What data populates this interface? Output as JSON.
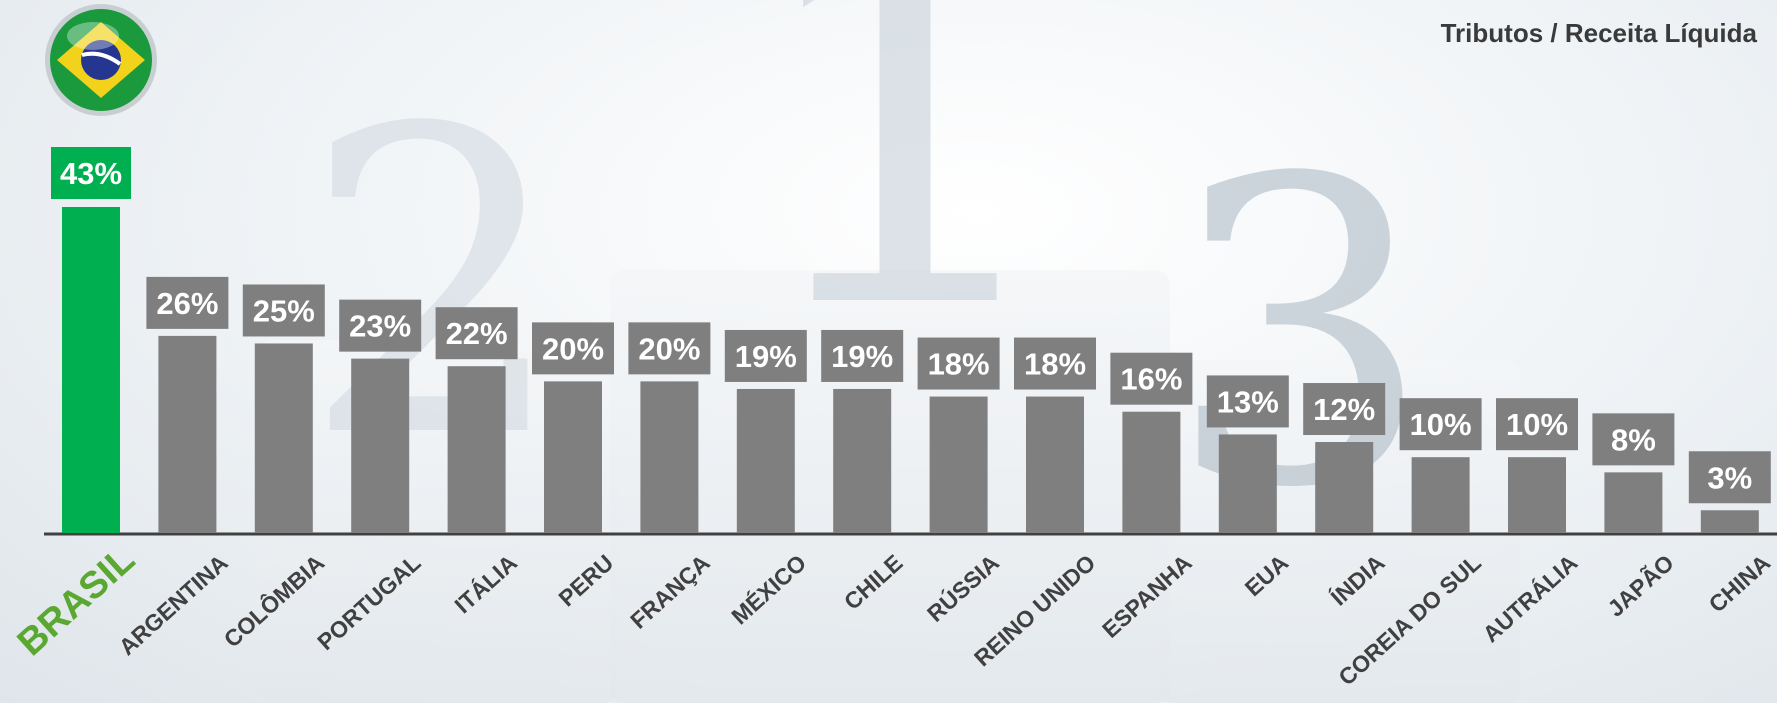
{
  "title": "Tributos / Receita Líquida",
  "flag_icon": "brazil-flag-icon",
  "colors": {
    "highlight": "#00b050",
    "highlight_label": "#5aa832",
    "bar": "#7f7f7f",
    "label_text": "#ffffff",
    "category_text": "#404040",
    "axis": "#404040"
  },
  "chart_data": {
    "type": "bar",
    "title": "Tributos / Receita Líquida",
    "categories": [
      "BRASIL",
      "ARGENTINA",
      "COLÔMBIA",
      "PORTUGAL",
      "ITÁLIA",
      "PERU",
      "FRANÇA",
      "MÉXICO",
      "CHILE",
      "RÚSSIA",
      "REINO UNIDO",
      "ESPANHA",
      "EUA",
      "ÍNDIA",
      "COREIA DO SUL",
      "AUTRÁLIA",
      "JAPÃO",
      "CHINA"
    ],
    "values": [
      43,
      26,
      25,
      23,
      22,
      20,
      20,
      19,
      19,
      18,
      18,
      16,
      13,
      12,
      10,
      10,
      8,
      3
    ],
    "data_labels": [
      "43%",
      "26%",
      "25%",
      "23%",
      "22%",
      "20%",
      "20%",
      "19%",
      "19%",
      "18%",
      "18%",
      "16%",
      "13%",
      "12%",
      "10%",
      "10%",
      "8%",
      "3%"
    ],
    "highlight_category": "BRASIL",
    "unit": "%",
    "xlabel": "",
    "ylabel": "",
    "ylim": [
      0,
      43
    ],
    "grid": false,
    "legend": "none"
  }
}
